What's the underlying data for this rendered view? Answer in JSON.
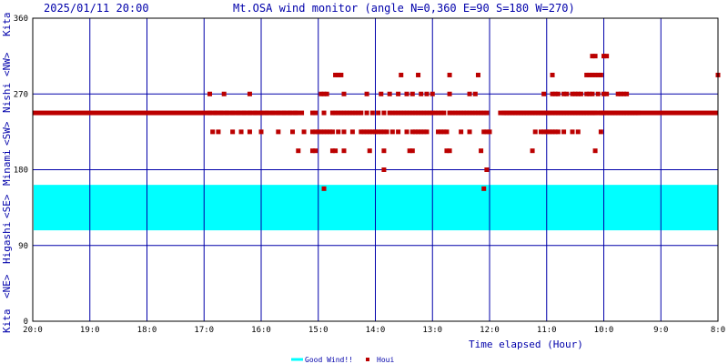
{
  "header": {
    "timestamp": "2025/01/11 20:00",
    "title": "Mt.OSA wind monitor (angle N=0,360 E=90 S=180 W=270)"
  },
  "side_labels": {
    "top": "Kita",
    "nw": "<NW>",
    "nishi": "Nishi",
    "sw": "<SW>",
    "minami": "Minami",
    "se": "<SE>",
    "higashi": "Higashi",
    "ne": "<NE>",
    "bottom": "Kita"
  },
  "colors": {
    "frame": "#000000",
    "grid": "#0000aa",
    "band": "#00ffff",
    "points": "#bb0000"
  },
  "chart_data": {
    "type": "scatter",
    "title": "Mt.OSA wind monitor (angle N=0,360 E=90 S=180 W=270)",
    "xlabel": "Time elapsed (Hour)",
    "ylabel": "",
    "x_tick_labels": [
      "20:0",
      "19:0",
      "18:0",
      "17:0",
      "16:0",
      "15:0",
      "14:0",
      "13:0",
      "12:0",
      "11:0",
      "10:0",
      "9:0",
      "8:0"
    ],
    "xlim": [
      0,
      12
    ],
    "x_direction": "hours elapsed from 20:00 back to 8:00",
    "y_ticks": [
      0,
      90,
      180,
      270,
      360
    ],
    "ylim": [
      0,
      360
    ],
    "grid": true,
    "legend_position": "bottom-center",
    "band": {
      "name": "Good Wind!!",
      "from": 108,
      "to": 162
    },
    "series": [
      {
        "name": "Houi",
        "base_segments": [
          {
            "x_from": 0.0,
            "x_to": 4.75,
            "y": 247.5
          },
          {
            "x_from": 8.15,
            "x_to": 12.0,
            "y": 247.5
          }
        ],
        "points": [
          [
            3.1,
            270
          ],
          [
            3.35,
            270
          ],
          [
            3.8,
            270
          ],
          [
            3.15,
            225
          ],
          [
            3.25,
            225
          ],
          [
            3.5,
            225
          ],
          [
            3.65,
            225
          ],
          [
            3.8,
            225
          ],
          [
            4.0,
            225
          ],
          [
            4.3,
            225
          ],
          [
            4.55,
            225
          ],
          [
            3.1,
            247.5
          ],
          [
            3.2,
            247.5
          ],
          [
            3.3,
            247.5
          ],
          [
            3.4,
            247.5
          ],
          [
            3.5,
            247.5
          ],
          [
            3.6,
            247.5
          ],
          [
            3.7,
            247.5
          ],
          [
            3.8,
            247.5
          ],
          [
            3.9,
            247.5
          ],
          [
            4.0,
            247.5
          ],
          [
            4.1,
            247.5
          ],
          [
            4.2,
            247.5
          ],
          [
            4.3,
            247.5
          ],
          [
            4.4,
            247.5
          ],
          [
            4.5,
            247.5
          ],
          [
            4.6,
            247.5
          ],
          [
            5.05,
            270
          ],
          [
            5.1,
            270
          ],
          [
            5.15,
            270
          ],
          [
            5.45,
            270
          ],
          [
            5.85,
            270
          ],
          [
            6.1,
            270
          ],
          [
            6.25,
            270
          ],
          [
            6.4,
            270
          ],
          [
            6.55,
            270
          ],
          [
            6.65,
            270
          ],
          [
            6.8,
            270
          ],
          [
            6.9,
            270
          ],
          [
            7.0,
            270
          ],
          [
            7.3,
            270
          ],
          [
            7.65,
            270
          ],
          [
            7.75,
            270
          ],
          [
            5.3,
            292.5
          ],
          [
            5.35,
            292.5
          ],
          [
            5.4,
            292.5
          ],
          [
            6.45,
            292.5
          ],
          [
            6.75,
            292.5
          ],
          [
            7.3,
            292.5
          ],
          [
            7.8,
            292.5
          ],
          [
            4.9,
            247.5
          ],
          [
            4.95,
            247.5
          ],
          [
            5.1,
            247.5
          ],
          [
            5.25,
            247.5
          ],
          [
            5.3,
            247.5
          ],
          [
            5.35,
            247.5
          ],
          [
            5.4,
            247.5
          ],
          [
            5.45,
            247.5
          ],
          [
            5.5,
            247.5
          ],
          [
            5.55,
            247.5
          ],
          [
            5.6,
            247.5
          ],
          [
            5.65,
            247.5
          ],
          [
            5.7,
            247.5
          ],
          [
            5.75,
            247.5
          ],
          [
            5.85,
            247.5
          ],
          [
            5.95,
            247.5
          ],
          [
            6.05,
            247.5
          ],
          [
            6.15,
            247.5
          ],
          [
            6.25,
            247.5
          ],
          [
            6.3,
            247.5
          ],
          [
            6.35,
            247.5
          ],
          [
            6.4,
            247.5
          ],
          [
            6.45,
            247.5
          ],
          [
            6.5,
            247.5
          ],
          [
            6.55,
            247.5
          ],
          [
            6.6,
            247.5
          ],
          [
            6.65,
            247.5
          ],
          [
            6.7,
            247.5
          ],
          [
            6.75,
            247.5
          ],
          [
            6.8,
            247.5
          ],
          [
            6.85,
            247.5
          ],
          [
            6.9,
            247.5
          ],
          [
            6.95,
            247.5
          ],
          [
            7.0,
            247.5
          ],
          [
            7.05,
            247.5
          ],
          [
            7.1,
            247.5
          ],
          [
            7.15,
            247.5
          ],
          [
            7.2,
            247.5
          ],
          [
            7.3,
            247.5
          ],
          [
            7.35,
            247.5
          ],
          [
            7.4,
            247.5
          ],
          [
            7.45,
            247.5
          ],
          [
            7.5,
            247.5
          ],
          [
            7.55,
            247.5
          ],
          [
            7.6,
            247.5
          ],
          [
            7.65,
            247.5
          ],
          [
            7.7,
            247.5
          ],
          [
            7.75,
            247.5
          ],
          [
            7.8,
            247.5
          ],
          [
            7.85,
            247.5
          ],
          [
            7.9,
            247.5
          ],
          [
            7.95,
            247.5
          ],
          [
            4.75,
            225
          ],
          [
            4.9,
            225
          ],
          [
            4.95,
            225
          ],
          [
            5.0,
            225
          ],
          [
            5.05,
            225
          ],
          [
            5.1,
            225
          ],
          [
            5.15,
            225
          ],
          [
            5.2,
            225
          ],
          [
            5.25,
            225
          ],
          [
            5.35,
            225
          ],
          [
            5.45,
            225
          ],
          [
            5.6,
            225
          ],
          [
            5.75,
            225
          ],
          [
            5.8,
            225
          ],
          [
            5.85,
            225
          ],
          [
            5.9,
            225
          ],
          [
            5.95,
            225
          ],
          [
            6.0,
            225
          ],
          [
            6.05,
            225
          ],
          [
            6.1,
            225
          ],
          [
            6.15,
            225
          ],
          [
            6.2,
            225
          ],
          [
            6.3,
            225
          ],
          [
            6.4,
            225
          ],
          [
            6.55,
            225
          ],
          [
            6.65,
            225
          ],
          [
            6.7,
            225
          ],
          [
            6.75,
            225
          ],
          [
            6.8,
            225
          ],
          [
            6.85,
            225
          ],
          [
            6.9,
            225
          ],
          [
            7.1,
            225
          ],
          [
            7.15,
            225
          ],
          [
            7.2,
            225
          ],
          [
            7.25,
            225
          ],
          [
            7.5,
            225
          ],
          [
            7.65,
            225
          ],
          [
            7.9,
            225
          ],
          [
            7.95,
            225
          ],
          [
            8.0,
            225
          ],
          [
            4.65,
            202.5
          ],
          [
            4.9,
            202.5
          ],
          [
            4.95,
            202.5
          ],
          [
            5.25,
            202.5
          ],
          [
            5.3,
            202.5
          ],
          [
            5.45,
            202.5
          ],
          [
            5.9,
            202.5
          ],
          [
            6.15,
            202.5
          ],
          [
            6.6,
            202.5
          ],
          [
            6.65,
            202.5
          ],
          [
            7.25,
            202.5
          ],
          [
            7.3,
            202.5
          ],
          [
            7.85,
            202.5
          ],
          [
            6.15,
            180
          ],
          [
            7.95,
            180
          ],
          [
            5.1,
            157.5
          ],
          [
            7.9,
            157.5
          ],
          [
            8.25,
            247.5
          ],
          [
            8.3,
            247.5
          ],
          [
            8.35,
            247.5
          ],
          [
            8.4,
            247.5
          ],
          [
            8.45,
            247.5
          ],
          [
            8.5,
            247.5
          ],
          [
            8.55,
            247.5
          ],
          [
            8.6,
            247.5
          ],
          [
            8.65,
            247.5
          ],
          [
            8.7,
            247.5
          ],
          [
            8.75,
            247.5
          ],
          [
            8.8,
            247.5
          ],
          [
            8.85,
            247.5
          ],
          [
            8.9,
            247.5
          ],
          [
            8.95,
            247.5
          ],
          [
            9.0,
            247.5
          ],
          [
            9.05,
            247.5
          ],
          [
            9.1,
            247.5
          ],
          [
            9.15,
            247.5
          ],
          [
            9.2,
            247.5
          ],
          [
            9.25,
            247.5
          ],
          [
            9.3,
            247.5
          ],
          [
            9.35,
            247.5
          ],
          [
            9.4,
            247.5
          ],
          [
            9.45,
            247.5
          ],
          [
            9.5,
            247.5
          ],
          [
            9.55,
            247.5
          ],
          [
            9.6,
            247.5
          ],
          [
            9.65,
            247.5
          ],
          [
            9.7,
            247.5
          ],
          [
            9.75,
            247.5
          ],
          [
            9.8,
            247.5
          ],
          [
            9.85,
            247.5
          ],
          [
            9.95,
            247.5
          ],
          [
            10.0,
            247.5
          ],
          [
            10.05,
            247.5
          ],
          [
            10.1,
            247.5
          ],
          [
            10.15,
            247.5
          ],
          [
            10.2,
            247.5
          ],
          [
            10.25,
            247.5
          ],
          [
            10.3,
            247.5
          ],
          [
            10.35,
            247.5
          ],
          [
            10.4,
            247.5
          ],
          [
            10.45,
            247.5
          ],
          [
            10.5,
            247.5
          ],
          [
            10.55,
            247.5
          ],
          [
            10.6,
            247.5
          ],
          [
            8.8,
            225
          ],
          [
            8.9,
            225
          ],
          [
            8.95,
            225
          ],
          [
            9.0,
            225
          ],
          [
            9.05,
            225
          ],
          [
            9.1,
            225
          ],
          [
            9.15,
            225
          ],
          [
            9.2,
            225
          ],
          [
            9.3,
            225
          ],
          [
            9.45,
            225
          ],
          [
            9.55,
            225
          ],
          [
            9.95,
            225
          ],
          [
            8.75,
            202.5
          ],
          [
            9.85,
            202.5
          ],
          [
            8.95,
            270
          ],
          [
            9.1,
            270
          ],
          [
            9.15,
            270
          ],
          [
            9.2,
            270
          ],
          [
            9.3,
            270
          ],
          [
            9.35,
            270
          ],
          [
            9.45,
            270
          ],
          [
            9.5,
            270
          ],
          [
            9.55,
            270
          ],
          [
            9.6,
            270
          ],
          [
            9.7,
            270
          ],
          [
            9.75,
            270
          ],
          [
            9.8,
            270
          ],
          [
            9.9,
            270
          ],
          [
            10.0,
            270
          ],
          [
            10.05,
            270
          ],
          [
            10.25,
            270
          ],
          [
            10.3,
            270
          ],
          [
            10.35,
            270
          ],
          [
            10.4,
            270
          ],
          [
            9.1,
            292.5
          ],
          [
            9.7,
            292.5
          ],
          [
            9.75,
            292.5
          ],
          [
            9.8,
            292.5
          ],
          [
            9.85,
            292.5
          ],
          [
            9.9,
            292.5
          ],
          [
            9.95,
            292.5
          ],
          [
            9.8,
            315
          ],
          [
            9.85,
            315
          ],
          [
            10.0,
            315
          ],
          [
            10.05,
            315
          ],
          [
            12.0,
            292.5
          ]
        ]
      }
    ]
  },
  "legend": [
    {
      "label": "Good Wind!!",
      "color": "#00ffff",
      "kind": "line"
    },
    {
      "label": "Houi",
      "color": "#bb0000",
      "kind": "square"
    }
  ]
}
